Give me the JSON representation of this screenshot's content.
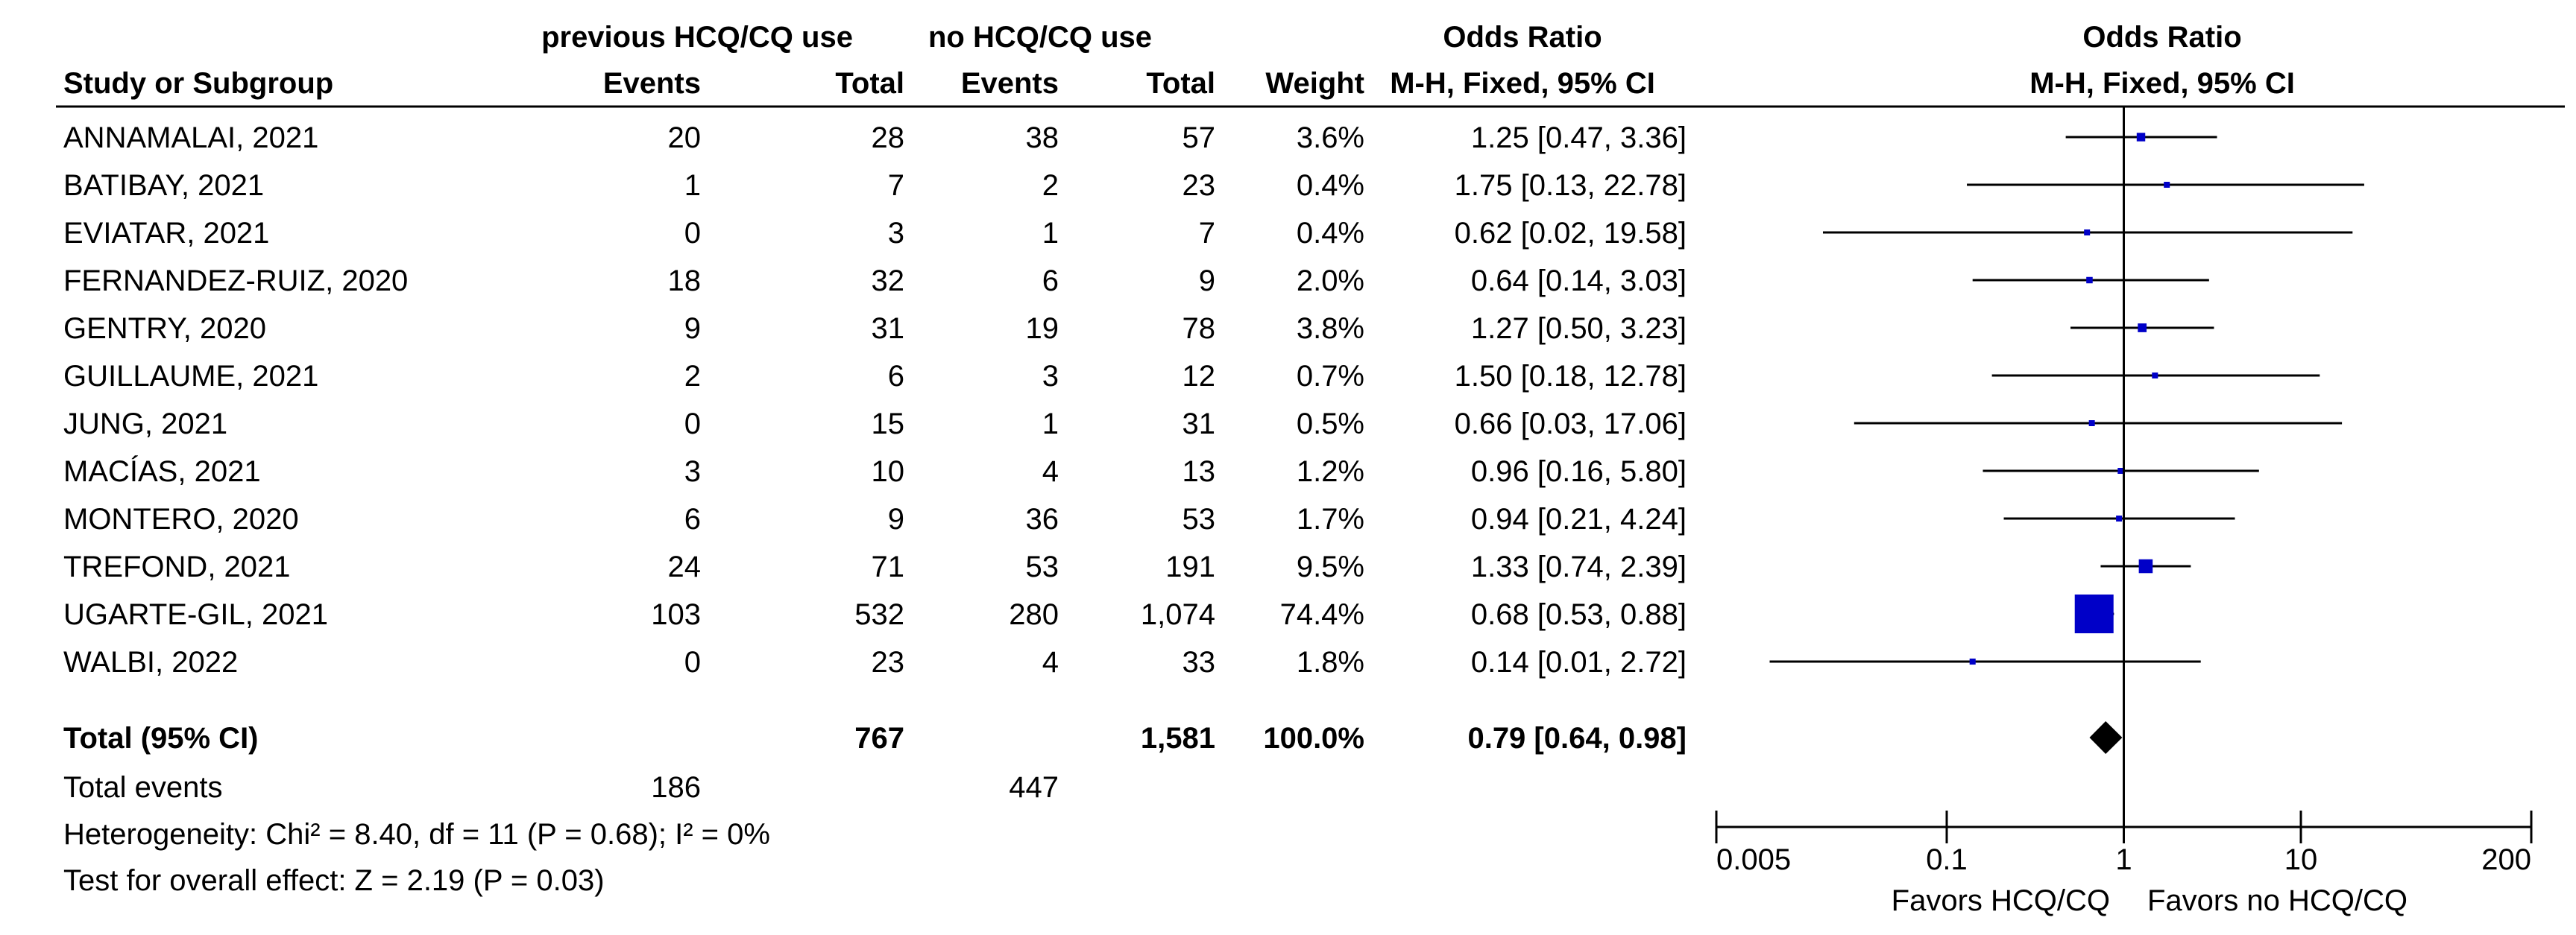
{
  "chart_data": {
    "type": "forest",
    "measure": "M-H, Fixed, 95% CI",
    "headers": {
      "group1": "previous HCQ/CQ use",
      "group2": "no HCQ/CQ use",
      "study_col": "Study or Subgroup",
      "events": "Events",
      "total": "Total",
      "weight": "Weight",
      "or_title": "Odds Ratio",
      "or_sub": "M-H, Fixed, 95% CI",
      "plot_title": "Odds Ratio",
      "plot_sub": "M-H, Fixed, 95% CI"
    },
    "studies": [
      {
        "name": "ANNAMALAI, 2021",
        "e1": "20",
        "n1": "28",
        "e2": "38",
        "n2": "57",
        "weight_text": "3.6%",
        "ci_text": "1.25 [0.47, 3.36]",
        "or": 1.25,
        "lo": 0.47,
        "hi": 3.36,
        "weight": 3.6
      },
      {
        "name": "BATIBAY, 2021",
        "e1": "1",
        "n1": "7",
        "e2": "2",
        "n2": "23",
        "weight_text": "0.4%",
        "ci_text": "1.75 [0.13, 22.78]",
        "or": 1.75,
        "lo": 0.13,
        "hi": 22.78,
        "weight": 0.4
      },
      {
        "name": "EVIATAR, 2021",
        "e1": "0",
        "n1": "3",
        "e2": "1",
        "n2": "7",
        "weight_text": "0.4%",
        "ci_text": "0.62 [0.02, 19.58]",
        "or": 0.62,
        "lo": 0.02,
        "hi": 19.58,
        "weight": 0.4
      },
      {
        "name": "FERNANDEZ-RUIZ, 2020",
        "e1": "18",
        "n1": "32",
        "e2": "6",
        "n2": "9",
        "weight_text": "2.0%",
        "ci_text": "0.64 [0.14, 3.03]",
        "or": 0.64,
        "lo": 0.14,
        "hi": 3.03,
        "weight": 2.0
      },
      {
        "name": "GENTRY, 2020",
        "e1": "9",
        "n1": "31",
        "e2": "19",
        "n2": "78",
        "weight_text": "3.8%",
        "ci_text": "1.27 [0.50, 3.23]",
        "or": 1.27,
        "lo": 0.5,
        "hi": 3.23,
        "weight": 3.8
      },
      {
        "name": "GUILLAUME, 2021",
        "e1": "2",
        "n1": "6",
        "e2": "3",
        "n2": "12",
        "weight_text": "0.7%",
        "ci_text": "1.50 [0.18, 12.78]",
        "or": 1.5,
        "lo": 0.18,
        "hi": 12.78,
        "weight": 0.7
      },
      {
        "name": "JUNG, 2021",
        "e1": "0",
        "n1": "15",
        "e2": "1",
        "n2": "31",
        "weight_text": "0.5%",
        "ci_text": "0.66 [0.03, 17.06]",
        "or": 0.66,
        "lo": 0.03,
        "hi": 17.06,
        "weight": 0.5
      },
      {
        "name": "MACÍAS, 2021",
        "e1": "3",
        "n1": "10",
        "e2": "4",
        "n2": "13",
        "weight_text": "1.2%",
        "ci_text": "0.96 [0.16, 5.80]",
        "or": 0.96,
        "lo": 0.16,
        "hi": 5.8,
        "weight": 1.2
      },
      {
        "name": "MONTERO, 2020",
        "e1": "6",
        "n1": "9",
        "e2": "36",
        "n2": "53",
        "weight_text": "1.7%",
        "ci_text": "0.94 [0.21, 4.24]",
        "or": 0.94,
        "lo": 0.21,
        "hi": 4.24,
        "weight": 1.7
      },
      {
        "name": "TREFOND, 2021",
        "e1": "24",
        "n1": "71",
        "e2": "53",
        "n2": "191",
        "weight_text": "9.5%",
        "ci_text": "1.33 [0.74, 2.39]",
        "or": 1.33,
        "lo": 0.74,
        "hi": 2.39,
        "weight": 9.5
      },
      {
        "name": "UGARTE-GIL, 2021",
        "e1": "103",
        "n1": "532",
        "e2": "280",
        "n2": "1,074",
        "weight_text": "74.4%",
        "ci_text": "0.68 [0.53, 0.88]",
        "or": 0.68,
        "lo": 0.53,
        "hi": 0.88,
        "weight": 74.4
      },
      {
        "name": "WALBI, 2022",
        "e1": "0",
        "n1": "23",
        "e2": "4",
        "n2": "33",
        "weight_text": "1.8%",
        "ci_text": "0.14 [0.01, 2.72]",
        "or": 0.14,
        "lo": 0.01,
        "hi": 2.72,
        "weight": 1.8
      }
    ],
    "total": {
      "label": "Total (95% CI)",
      "n1": "767",
      "n2": "1,581",
      "weight_text": "100.0%",
      "ci_text": "0.79 [0.64, 0.98]",
      "or": 0.79,
      "lo": 0.64,
      "hi": 0.98
    },
    "total_events": {
      "label": "Total events",
      "e1": "186",
      "e2": "447"
    },
    "heterogeneity": "Heterogeneity: Chi² = 8.40, df = 11 (P = 0.68); I² = 0%",
    "overall_effect": "Test for overall effect: Z = 2.19 (P = 0.03)",
    "axis": {
      "scale": "log",
      "ticks": [
        0.005,
        0.1,
        1,
        10,
        200
      ],
      "tick_labels": [
        "0.005",
        "0.1",
        "1",
        "10",
        "200"
      ],
      "reference": 1
    },
    "favors_left": "Favors HCQ/CQ",
    "favors_right": "Favors no HCQ/CQ",
    "colors": {
      "study_marker": "#0000c8",
      "total_marker": "#000000",
      "lines": "#000000"
    }
  }
}
